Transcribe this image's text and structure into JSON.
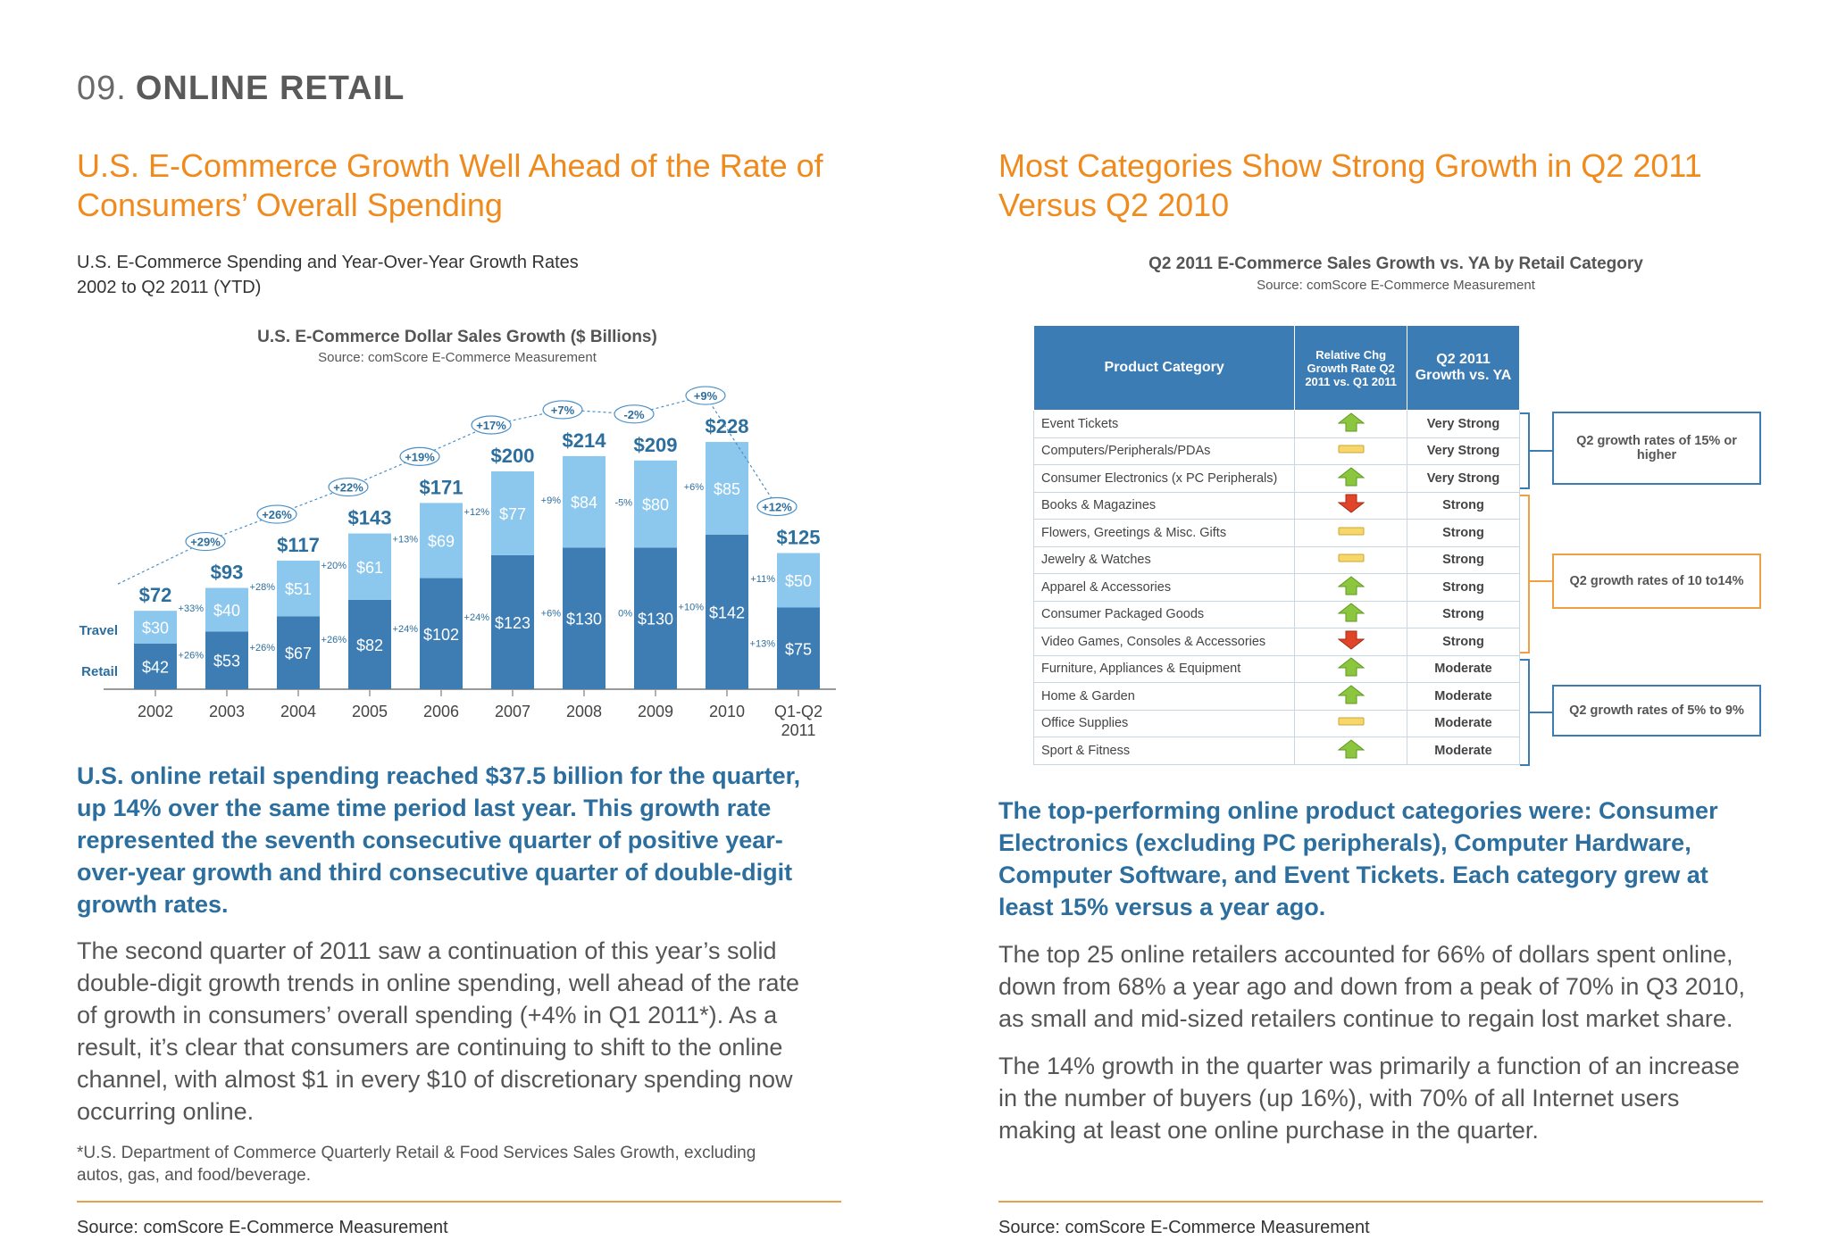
{
  "section": {
    "number": "09.",
    "title": "ONLINE RETAIL"
  },
  "left": {
    "heading": [
      "U.S. E-Commerce Growth Well Ahead of the Rate of",
      "Consumers’ Overall Spending"
    ],
    "subtitle": [
      "U.S. E-Commerce Spending and Year-Over-Year Growth Rates",
      "2002 to Q2 2011 (YTD)"
    ],
    "chart_title": "U.S. E-Commerce Dollar Sales Growth ($ Billions)",
    "chart_source": "Source: comScore E-Commerce Measurement",
    "lead": [
      "U.S. online retail spending reached $37.5 billion for the quarter,",
      "up 14% over the same time period last year. This growth rate",
      "represented the seventh consecutive quarter of positive year-",
      "over-year growth and third consecutive quarter of double-digit",
      "growth rates."
    ],
    "body": [
      "The second quarter of 2011 saw a continuation of this year’s solid",
      "double-digit growth trends in online spending, well ahead of the rate",
      "of growth in consumers’ overall spending (+4% in Q1 2011*). As a",
      "result, it’s clear that consumers are continuing to shift to the online",
      "channel, with almost $1 in every $10 of discretionary spending now",
      "occurring online."
    ],
    "footnote": [
      "*U.S. Department of Commerce Quarterly Retail & Food Services Sales Growth, excluding",
      "autos, gas, and food/beverage."
    ],
    "source": "Source: comScore E-Commerce Measurement"
  },
  "right": {
    "heading": [
      "Most Categories Show Strong Growth in Q2 2011",
      "Versus Q2 2010"
    ],
    "chart_title": "Q2 2011 E-Commerce Sales Growth vs. YA by Retail Category",
    "chart_source": "Source: comScore E-Commerce Measurement",
    "table": {
      "headers": [
        "Product Category",
        "Relative Chg Growth Rate Q2 2011 vs. Q1 2011",
        "Q2 2011 Growth vs. YA"
      ],
      "rows": [
        {
          "category": "Event Tickets",
          "change": "up",
          "growth": "Very Strong"
        },
        {
          "category": "Computers/Peripherals/PDAs",
          "change": "flat",
          "growth": "Very Strong"
        },
        {
          "category": "Consumer Electronics (x PC Peripherals)",
          "change": "up",
          "growth": "Very Strong"
        },
        {
          "category": "Books & Magazines",
          "change": "down",
          "growth": "Strong"
        },
        {
          "category": "Flowers, Greetings & Misc. Gifts",
          "change": "flat",
          "growth": "Strong"
        },
        {
          "category": "Jewelry & Watches",
          "change": "flat",
          "growth": "Strong"
        },
        {
          "category": "Apparel & Accessories",
          "change": "up",
          "growth": "Strong"
        },
        {
          "category": "Consumer Packaged Goods",
          "change": "up",
          "growth": "Strong"
        },
        {
          "category": "Video Games, Consoles & Accessories",
          "change": "down",
          "growth": "Strong"
        },
        {
          "category": "Furniture, Appliances & Equipment",
          "change": "up",
          "growth": "Moderate"
        },
        {
          "category": "Home & Garden",
          "change": "up",
          "growth": "Moderate"
        },
        {
          "category": "Office Supplies",
          "change": "flat",
          "growth": "Moderate"
        },
        {
          "category": "Sport & Fitness",
          "change": "up",
          "growth": "Moderate"
        }
      ]
    },
    "legend_boxes": [
      "Q2 growth rates of 15% or higher",
      "Q2 growth rates of 10 to14%",
      "Q2 growth rates of 5% to 9%"
    ],
    "lead": [
      "The top-performing online product categories were: Consumer",
      "Electronics (excluding PC peripherals), Computer Hardware,",
      "Computer Software, and Event Tickets. Each category grew at",
      "least 15% versus a year ago."
    ],
    "body1": [
      "The top 25 online retailers accounted for 66% of dollars spent online,",
      "down from 68% a year ago and down from a peak of 70% in Q3 2010,",
      "as small and mid-sized retailers continue to regain lost market share."
    ],
    "body2": [
      "The 14% growth in the quarter was primarily a function of an increase",
      "in the number of buyers (up 16%), with 70% of all Internet users",
      "making at least one online purchase in the quarter."
    ],
    "source": "Source: comScore E-Commerce Measurement"
  },
  "colors": {
    "accent_orange": "#F08A1C",
    "accent_blue": "#2C6E9E",
    "retail_bar": "#3D7DB3",
    "travel_bar": "#8CC7EE",
    "box_blue": "#3C7CB4",
    "box_orange": "#F0A040"
  },
  "chart_data": {
    "type": "bar",
    "stacked": true,
    "title": "U.S. E-Commerce Dollar Sales Growth ($ Billions)",
    "categories": [
      "2002",
      "2003",
      "2004",
      "2005",
      "2006",
      "2007",
      "2008",
      "2009",
      "2010",
      "Q1-Q2 2011"
    ],
    "series": [
      {
        "name": "Retail",
        "values": [
          42,
          53,
          67,
          82,
          102,
          123,
          130,
          130,
          142,
          75
        ],
        "labels": [
          "$42",
          "$53",
          "$67",
          "$82",
          "$102",
          "$123",
          "$130",
          "$130",
          "$142",
          "$75"
        ],
        "growth": [
          "",
          "+26%",
          "+26%",
          "+26%",
          "+24%",
          "+24%",
          "+6%",
          "0%",
          "+10%",
          "+13%"
        ]
      },
      {
        "name": "Travel",
        "values": [
          30,
          40,
          51,
          61,
          69,
          77,
          84,
          80,
          85,
          50
        ],
        "labels": [
          "$30",
          "$40",
          "$51",
          "$61",
          "$69",
          "$77",
          "$84",
          "$80",
          "$85",
          "$50"
        ],
        "growth": [
          "",
          "+33%",
          "+28%",
          "+20%",
          "+13%",
          "+12%",
          "+9%",
          "-5%",
          "+6%",
          "+11%"
        ]
      }
    ],
    "totals": [
      "$72",
      "$93",
      "$117",
      "$143",
      "$171",
      "$200",
      "$214",
      "$209",
      "$228",
      "$125"
    ],
    "total_growth": [
      "",
      "+29%",
      "+26%",
      "+22%",
      "+19%",
      "+17%",
      "+7%",
      "-2%",
      "+9%",
      "+12%"
    ],
    "ylim": [
      0,
      240
    ]
  }
}
